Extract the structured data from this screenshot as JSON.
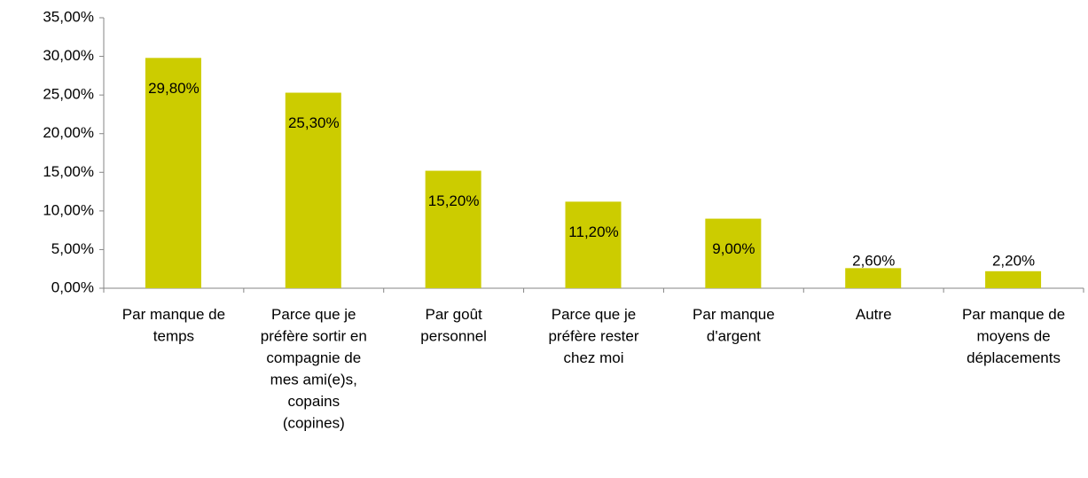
{
  "chart_data": {
    "type": "bar",
    "categories": [
      "Par manque de temps",
      "Parce que je préfère sortir en compagnie de mes ami(e)s, copains (copines)",
      "Par goût personnel",
      "Parce que je préfère rester chez moi",
      "Par manque d'argent",
      "Autre",
      "Par manque de moyens de déplacements"
    ],
    "values": [
      29.8,
      25.3,
      15.2,
      11.2,
      9.0,
      2.6,
      2.2
    ],
    "value_labels": [
      "29,80%",
      "25,30%",
      "15,20%",
      "11,20%",
      "9,00%",
      "2,60%",
      "2,20%"
    ],
    "color": "#cccc00",
    "ylim": [
      0,
      35
    ],
    "yticks": [
      {
        "value": 0,
        "label": "0,00%"
      },
      {
        "value": 5,
        "label": "5,00%"
      },
      {
        "value": 10,
        "label": "10,00%"
      },
      {
        "value": 15,
        "label": "15,00%"
      },
      {
        "value": 20,
        "label": "20,00%"
      },
      {
        "value": 25,
        "label": "25,00%"
      },
      {
        "value": 30,
        "label": "30,00%"
      },
      {
        "value": 35,
        "label": "35,00%"
      }
    ],
    "grid": false
  }
}
